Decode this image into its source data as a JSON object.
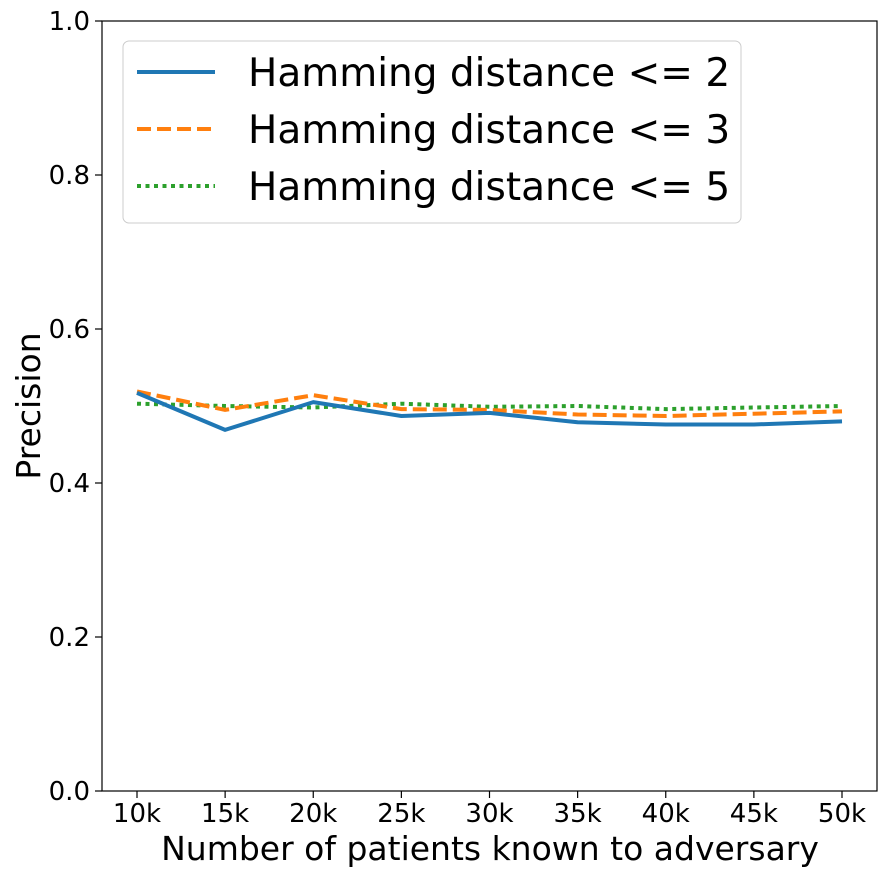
{
  "chart_data": {
    "type": "line",
    "title": "",
    "xlabel": "Number of patients known to adversary",
    "ylabel": "Precision",
    "categories": [
      "10k",
      "15k",
      "20k",
      "25k",
      "30k",
      "35k",
      "40k",
      "45k",
      "50k"
    ],
    "ylim": [
      0.0,
      1.0
    ],
    "yticks": [
      "0.0",
      "0.2",
      "0.4",
      "0.6",
      "0.8",
      "1.0"
    ],
    "grid": false,
    "legend_position": "top-left",
    "series": [
      {
        "name": "Hamming distance <= 2",
        "color": "#1f77b4",
        "style": "solid",
        "values": [
          0.517,
          0.469,
          0.505,
          0.487,
          0.491,
          0.479,
          0.476,
          0.476,
          0.48
        ]
      },
      {
        "name": "Hamming distance <= 3",
        "color": "#ff7f0e",
        "style": "dashed",
        "values": [
          0.519,
          0.495,
          0.514,
          0.496,
          0.495,
          0.489,
          0.487,
          0.49,
          0.493
        ]
      },
      {
        "name": "Hamming distance <= 5",
        "color": "#2ca02c",
        "style": "dotted",
        "values": [
          0.503,
          0.5,
          0.498,
          0.503,
          0.499,
          0.5,
          0.496,
          0.498,
          0.5
        ]
      }
    ]
  }
}
